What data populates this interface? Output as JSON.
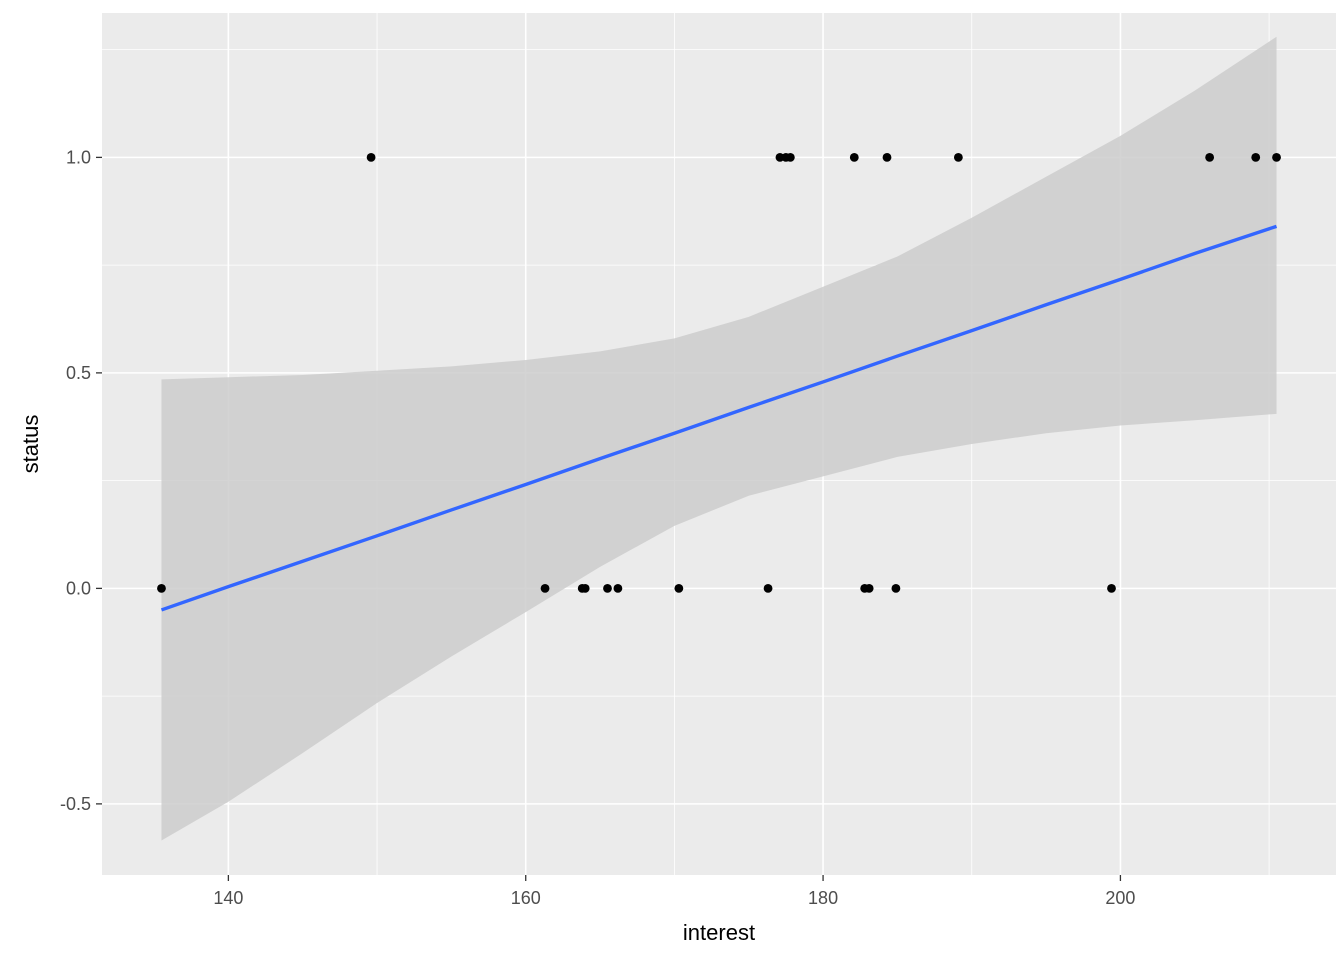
{
  "chart_data": {
    "type": "scatter",
    "title": "",
    "xlabel": "interest",
    "ylabel": "status",
    "xlim": [
      131.5,
      214.5
    ],
    "ylim": [
      -0.665,
      1.335
    ],
    "x_ticks": [
      140,
      160,
      180,
      200
    ],
    "x_tick_labels": [
      "140",
      "160",
      "180",
      "200"
    ],
    "y_ticks": [
      -0.5,
      0.0,
      0.5,
      1.0
    ],
    "y_tick_labels": [
      "-0.5",
      "0.0",
      "0.5",
      "1.0"
    ],
    "grid": true,
    "legend": "none",
    "points": [
      {
        "x": 135.5,
        "y": 0
      },
      {
        "x": 149.6,
        "y": 1
      },
      {
        "x": 161.3,
        "y": 0
      },
      {
        "x": 163.8,
        "y": 0
      },
      {
        "x": 164.0,
        "y": 0
      },
      {
        "x": 165.5,
        "y": 0
      },
      {
        "x": 166.2,
        "y": 0
      },
      {
        "x": 170.3,
        "y": 0
      },
      {
        "x": 176.3,
        "y": 0
      },
      {
        "x": 177.1,
        "y": 1
      },
      {
        "x": 177.5,
        "y": 1
      },
      {
        "x": 177.8,
        "y": 1
      },
      {
        "x": 182.1,
        "y": 1
      },
      {
        "x": 182.8,
        "y": 0
      },
      {
        "x": 183.1,
        "y": 0
      },
      {
        "x": 184.3,
        "y": 1
      },
      {
        "x": 184.9,
        "y": 0
      },
      {
        "x": 189.1,
        "y": 1
      },
      {
        "x": 199.4,
        "y": 0
      },
      {
        "x": 206.0,
        "y": 1
      },
      {
        "x": 209.1,
        "y": 1
      },
      {
        "x": 210.5,
        "y": 1
      }
    ],
    "smooth": {
      "method": "lm",
      "x": [
        135.5,
        140,
        145,
        150,
        155,
        160,
        165,
        170,
        175,
        180,
        185,
        190,
        195,
        200,
        205,
        210.5
      ],
      "fit": [
        -0.05,
        0.004,
        0.063,
        0.122,
        0.182,
        0.241,
        0.301,
        0.36,
        0.42,
        0.479,
        0.539,
        0.598,
        0.658,
        0.717,
        0.777,
        0.84
      ],
      "lower": [
        -0.585,
        -0.495,
        -0.382,
        -0.266,
        -0.158,
        -0.055,
        0.05,
        0.145,
        0.215,
        0.26,
        0.305,
        0.335,
        0.36,
        0.378,
        0.39,
        0.405
      ],
      "upper": [
        0.485,
        0.49,
        0.495,
        0.505,
        0.515,
        0.53,
        0.55,
        0.58,
        0.63,
        0.7,
        0.77,
        0.86,
        0.955,
        1.05,
        1.155,
        1.28
      ]
    },
    "colors": {
      "panel": "#ebebeb",
      "grid_major": "#ffffff",
      "ribbon": "#cccccc",
      "line": "#3366ff",
      "point": "#000000"
    }
  }
}
